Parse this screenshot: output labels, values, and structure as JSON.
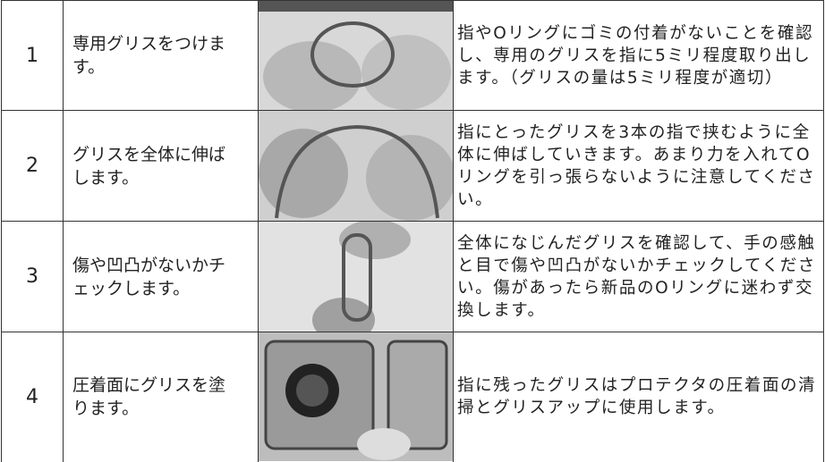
{
  "table": {
    "rows": [
      [
        "1",
        "専用グリスをつけます。",
        "指やOリングにゴミの付着がないことを確認し、専用のグリスを指に5ミリ程度取り出します。（グリスの量は5ミリ程度が適切）"
      ],
      [
        "2",
        "グリスを全体に伸ばします。",
        "指にとったグリスを3本の指で挟むように全体に伸ばしていきます。あまり力を入れてOリングを引っ張らないように注意してください。"
      ],
      [
        "3",
        "傷や凹凸がないかチェックします。",
        "全体になじんだグリスを確認して、手の感触と目で傷や凹凸がないかチェックしてください。傷があったら新品のOリングに迷わず交換します。"
      ],
      [
        "4",
        "圧着面にグリスを塗ります。",
        "指に残ったグリスはプロテクタの圧着面の清掃とグリスアップに使用します。"
      ]
    ]
  }
}
